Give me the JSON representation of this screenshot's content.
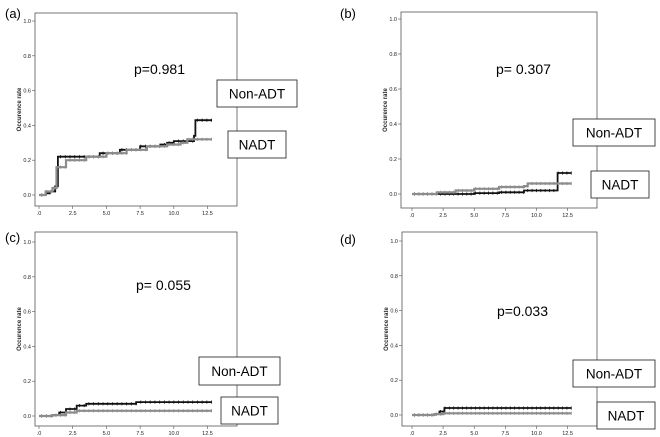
{
  "chart_data": [
    {
      "type": "line",
      "panel_label": "(a)",
      "ylabel": "Occurence rate",
      "xlabel": "",
      "ylim": [
        0,
        1.0
      ],
      "xlim": [
        0,
        13.5
      ],
      "y_ticks": [
        "0.0",
        "0.2",
        "0.4",
        "0.6",
        "0.8",
        "1.0"
      ],
      "y_tick_values": [
        0,
        0.2,
        0.4,
        0.6,
        0.8,
        1.0
      ],
      "x_ticks": [
        ".0",
        "2.5",
        "5.0",
        "7.5",
        "10.0",
        "12.5"
      ],
      "x_tick_values": [
        0,
        2.5,
        5.0,
        7.5,
        10.0,
        12.5
      ],
      "p_value": "p=0.981",
      "legend": [
        "Non-ADT",
        "NADT"
      ],
      "series": [
        {
          "name": "Non-ADT",
          "color": "#111111",
          "x": [
            0,
            0.5,
            0.8,
            1.2,
            1.4,
            3.0,
            4.5,
            6.0,
            7.5,
            9.0,
            9.5,
            10.0,
            11.5,
            11.6,
            12.8
          ],
          "y": [
            0,
            0.01,
            0.02,
            0.05,
            0.22,
            0.22,
            0.24,
            0.26,
            0.28,
            0.29,
            0.3,
            0.31,
            0.34,
            0.43,
            0.43
          ]
        },
        {
          "name": "NADT",
          "color": "#8c8c8c",
          "x": [
            0,
            0.5,
            1.0,
            1.3,
            2.0,
            3.5,
            5.0,
            6.5,
            8.0,
            9.5,
            10.5,
            11.0,
            12.8
          ],
          "y": [
            0,
            0.02,
            0.04,
            0.16,
            0.2,
            0.22,
            0.24,
            0.26,
            0.28,
            0.29,
            0.3,
            0.32,
            0.32
          ]
        }
      ]
    },
    {
      "type": "line",
      "panel_label": "(b)",
      "ylabel": "Occurence rate",
      "xlabel": "",
      "ylim": [
        0,
        1.0
      ],
      "xlim": [
        0,
        13.5
      ],
      "y_ticks": [
        "0.0",
        "0.2",
        "0.4",
        "0.6",
        "0.8",
        "1.0"
      ],
      "y_tick_values": [
        0,
        0.2,
        0.4,
        0.6,
        0.8,
        1.0
      ],
      "x_ticks": [
        ".0",
        "2.5",
        "5.0",
        "7.5",
        "10.0",
        "12.5"
      ],
      "x_tick_values": [
        0,
        2.5,
        5.0,
        7.5,
        10.0,
        12.5
      ],
      "p_value": "p= 0.307",
      "legend": [
        "Non-ADT",
        "NADT"
      ],
      "series": [
        {
          "name": "Non-ADT",
          "color": "#111111",
          "x": [
            0,
            3.0,
            5.0,
            7.0,
            9.0,
            11.6,
            11.7,
            12.8
          ],
          "y": [
            0,
            0,
            0.005,
            0.01,
            0.02,
            0.02,
            0.12,
            0.12
          ]
        },
        {
          "name": "NADT",
          "color": "#8c8c8c",
          "x": [
            0,
            2.0,
            3.5,
            5.0,
            7.0,
            9.0,
            9.3,
            11.0,
            12.8
          ],
          "y": [
            0,
            0.01,
            0.02,
            0.03,
            0.04,
            0.045,
            0.06,
            0.06,
            0.06
          ]
        }
      ]
    },
    {
      "type": "line",
      "panel_label": "(c)",
      "ylabel": "Occurence rate",
      "xlabel": "",
      "ylim": [
        0,
        1.0
      ],
      "xlim": [
        0,
        13.5
      ],
      "y_ticks": [
        "0.0",
        "0.2",
        "0.4",
        "0.6",
        "0.8",
        "1.0"
      ],
      "y_tick_values": [
        0,
        0.2,
        0.4,
        0.6,
        0.8,
        1.0
      ],
      "x_ticks": [
        ".0",
        "2.5",
        "5.0",
        "7.5",
        "10.0",
        "12.5"
      ],
      "x_tick_values": [
        0,
        2.5,
        5.0,
        7.5,
        10.0,
        12.5
      ],
      "p_value": "p= 0.055",
      "legend": [
        "Non-ADT",
        "NADT"
      ],
      "series": [
        {
          "name": "Non-ADT",
          "color": "#111111",
          "x": [
            0,
            1.0,
            1.5,
            2.0,
            2.8,
            3.5,
            5.0,
            7.0,
            7.2,
            9.0,
            12.8
          ],
          "y": [
            0,
            0.005,
            0.02,
            0.04,
            0.06,
            0.07,
            0.07,
            0.07,
            0.08,
            0.08,
            0.08
          ]
        },
        {
          "name": "NADT",
          "color": "#8c8c8c",
          "x": [
            0,
            1.0,
            2.0,
            2.8,
            4.0,
            7.0,
            12.8
          ],
          "y": [
            0,
            0.005,
            0.02,
            0.03,
            0.03,
            0.03,
            0.03
          ]
        }
      ]
    },
    {
      "type": "line",
      "panel_label": "(d)",
      "ylabel": "Occurence rate",
      "xlabel": "",
      "ylim": [
        0,
        1.0
      ],
      "xlim": [
        0,
        13.5
      ],
      "y_ticks": [
        "0.0",
        "0.2",
        "0.4",
        "0.6",
        "0.8",
        "1.0"
      ],
      "y_tick_values": [
        0,
        0.2,
        0.4,
        0.6,
        0.8,
        1.0
      ],
      "x_ticks": [
        ".0",
        "2.5",
        "5.0",
        "7.5",
        "10.0",
        "12.5"
      ],
      "x_tick_values": [
        0,
        2.5,
        5.0,
        7.5,
        10.0,
        12.5
      ],
      "p_value": "p=0.033",
      "legend": [
        "Non-ADT",
        "NADT"
      ],
      "series": [
        {
          "name": "Non-ADT",
          "color": "#111111",
          "x": [
            0,
            1.8,
            2.2,
            2.6,
            4.0,
            7.0,
            10.0,
            12.8
          ],
          "y": [
            0,
            0.005,
            0.02,
            0.04,
            0.04,
            0.04,
            0.04,
            0.04
          ]
        },
        {
          "name": "NADT",
          "color": "#8c8c8c",
          "x": [
            0,
            1.8,
            2.5,
            3.0,
            6.0,
            9.0,
            12.8
          ],
          "y": [
            0,
            0.005,
            0.01,
            0.01,
            0.01,
            0.01,
            0.01
          ]
        }
      ]
    }
  ]
}
